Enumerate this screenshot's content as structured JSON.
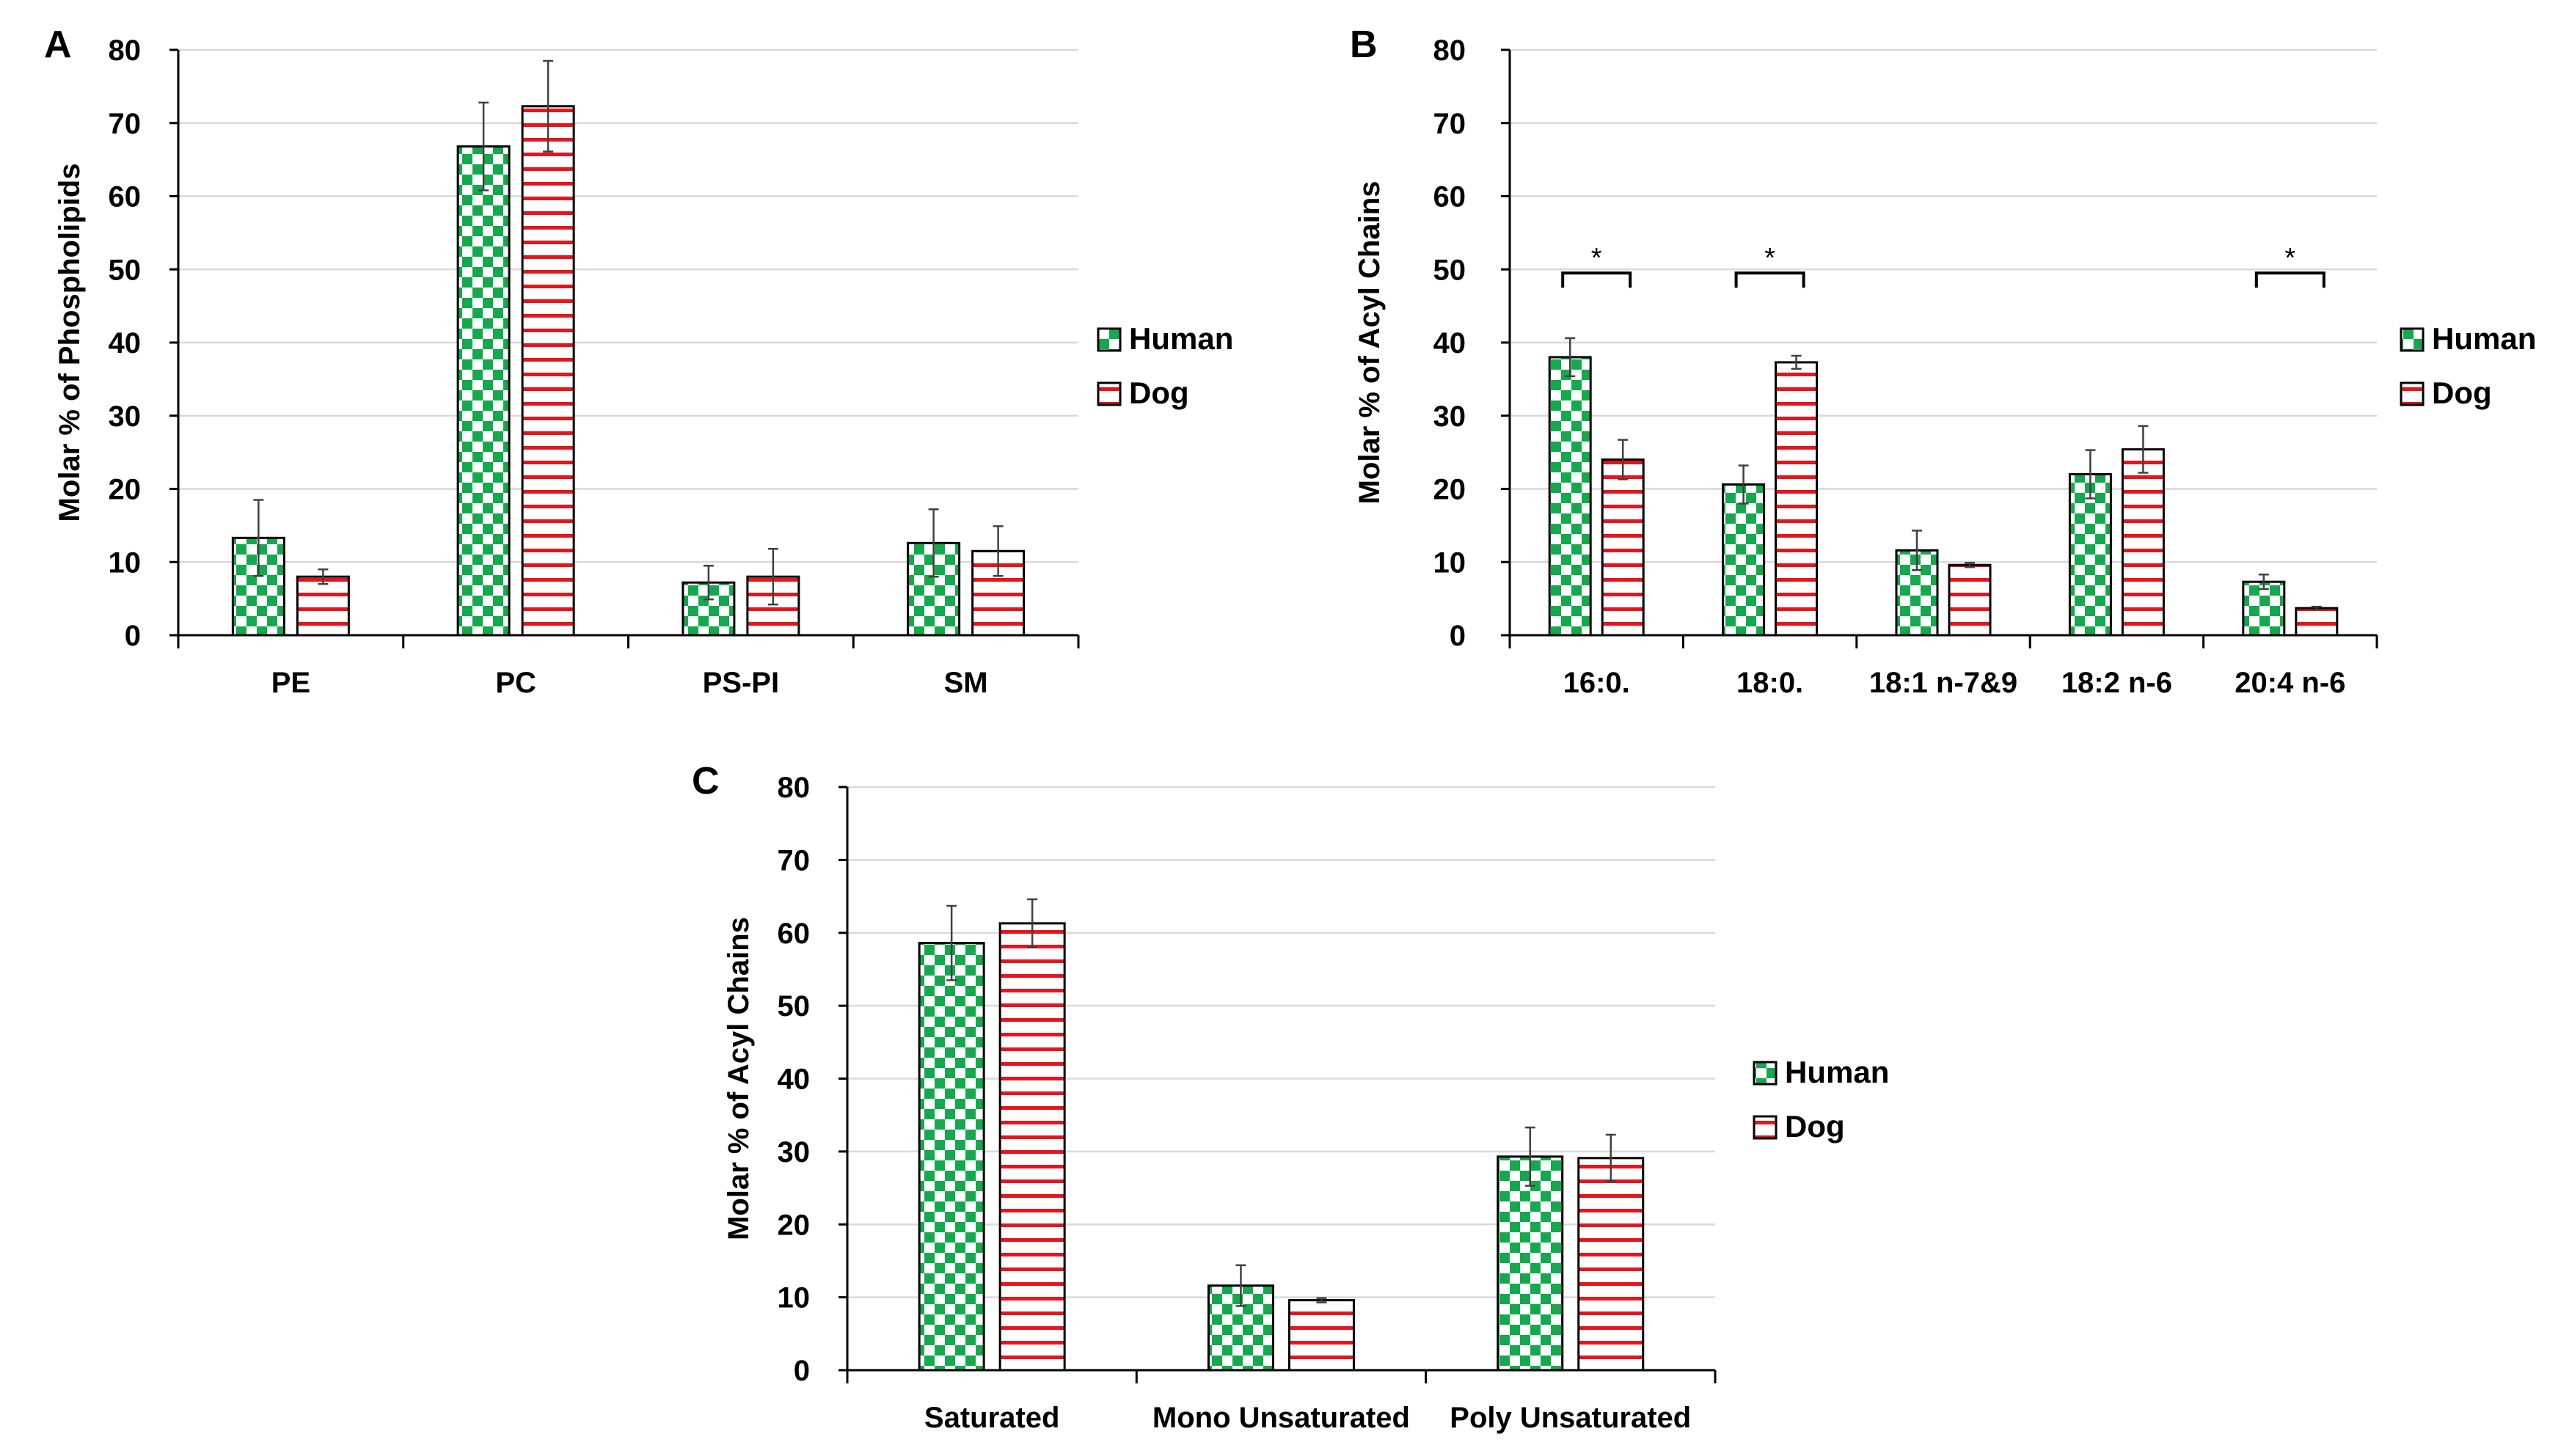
{
  "colors": {
    "human": "#13a94c",
    "dog": "#e8141c",
    "grid": "#d9d9d9",
    "axis": "#000000"
  },
  "chart_data": [
    {
      "panel_label": "A",
      "type": "bar",
      "title": "",
      "xlabel": "",
      "ylabel": "Molar % of Phospholipids",
      "ylim": [
        0,
        80
      ],
      "yticks": [
        0,
        10,
        20,
        30,
        40,
        50,
        60,
        70,
        80
      ],
      "grid": true,
      "legend": "right",
      "categories": [
        "PE",
        "PC",
        "PS-PI",
        "SM"
      ],
      "series": [
        {
          "name": "Human",
          "pattern": "checker",
          "values": [
            13.3,
            66.8,
            7.2,
            12.6
          ],
          "errors": [
            5.2,
            6.0,
            2.3,
            4.6
          ]
        },
        {
          "name": "Dog",
          "pattern": "stripes",
          "values": [
            8.0,
            72.3,
            8.0,
            11.5
          ],
          "errors": [
            1.0,
            6.2,
            3.8,
            3.4
          ]
        }
      ],
      "significance": []
    },
    {
      "panel_label": "B",
      "type": "bar",
      "title": "",
      "xlabel": "",
      "ylabel": "Molar % of Acyl Chains",
      "ylim": [
        0,
        80
      ],
      "yticks": [
        0,
        10,
        20,
        30,
        40,
        50,
        60,
        70,
        80
      ],
      "grid": true,
      "legend": "right",
      "categories": [
        "16:0.",
        "18:0.",
        "18:1 n-7&9",
        "18:2 n-6",
        "20:4 n-6"
      ],
      "series": [
        {
          "name": "Human",
          "pattern": "checker",
          "values": [
            38.0,
            20.6,
            11.6,
            22.0,
            7.3
          ],
          "errors": [
            2.6,
            2.6,
            2.7,
            3.3,
            1.0
          ]
        },
        {
          "name": "Dog",
          "pattern": "stripes",
          "values": [
            24.0,
            37.3,
            9.6,
            25.4,
            3.7
          ],
          "errors": [
            2.7,
            0.9,
            0.3,
            3.2,
            0.2
          ]
        }
      ],
      "significance": [
        {
          "category_index": 0,
          "label": "*"
        },
        {
          "category_index": 1,
          "label": "*"
        },
        {
          "category_index": 4,
          "label": "*"
        }
      ]
    },
    {
      "panel_label": "C",
      "type": "bar",
      "title": "",
      "xlabel": "",
      "ylabel": "Molar % of Acyl Chains",
      "ylim": [
        0,
        80
      ],
      "yticks": [
        0,
        10,
        20,
        30,
        40,
        50,
        60,
        70,
        80
      ],
      "grid": true,
      "legend": "right",
      "categories": [
        "Saturated",
        "Mono Unsaturated",
        "Poly Unsaturated"
      ],
      "series": [
        {
          "name": "Human",
          "pattern": "checker",
          "values": [
            58.6,
            11.6,
            29.3
          ],
          "errors": [
            5.1,
            2.8,
            4.0
          ]
        },
        {
          "name": "Dog",
          "pattern": "stripes",
          "values": [
            61.3,
            9.6,
            29.1
          ],
          "errors": [
            3.3,
            0.3,
            3.2
          ]
        }
      ],
      "significance": []
    }
  ]
}
